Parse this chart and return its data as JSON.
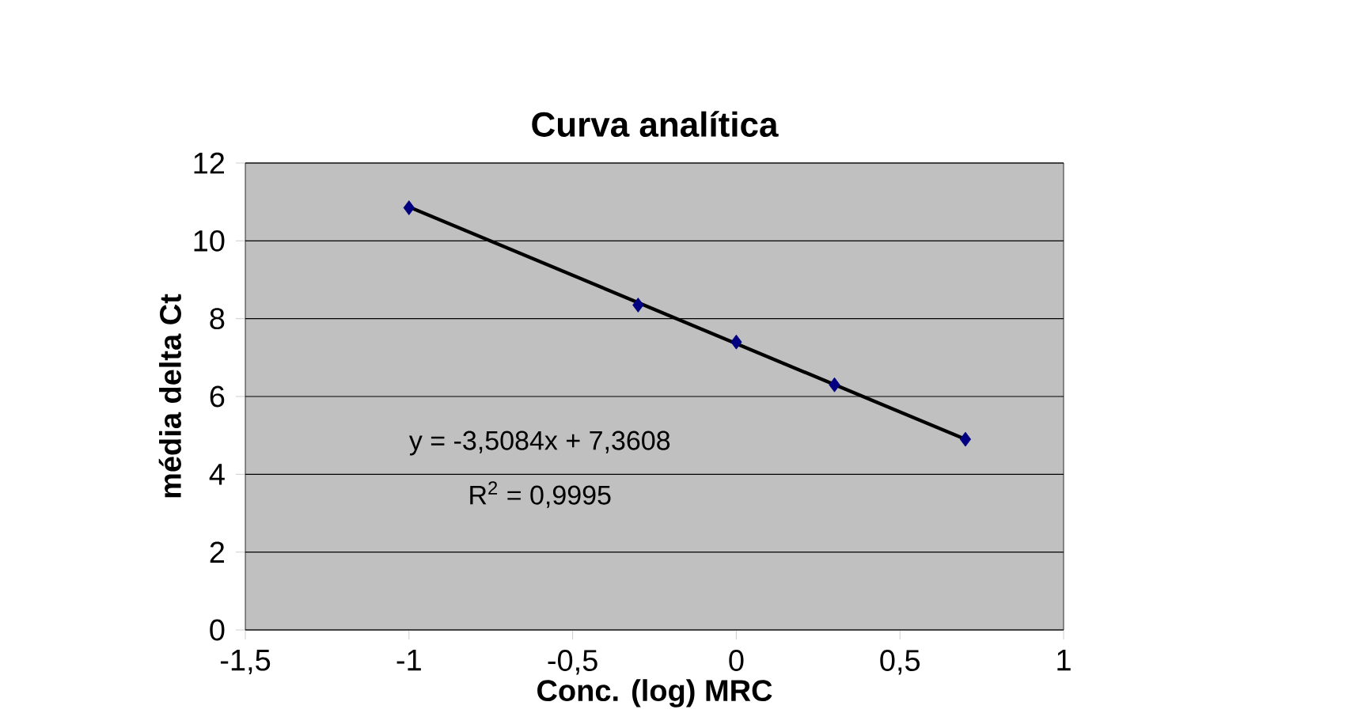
{
  "chart_data": {
    "type": "scatter",
    "title": "Curva analítica",
    "xlabel": "Conc. (log) MRC",
    "ylabel": "média delta Ct",
    "xlim": [
      -1.5,
      1
    ],
    "ylim": [
      0,
      12
    ],
    "xticks": [
      {
        "value": -1.5,
        "label": "-1,5"
      },
      -1,
      {
        "value": -0.5,
        "label": "-0,5"
      },
      0,
      {
        "value": 0.5,
        "label": "0,5"
      },
      1
    ],
    "yticks": [
      0,
      2,
      4,
      6,
      8,
      10,
      12
    ],
    "grid": "y",
    "marker": "diamond",
    "series": [
      {
        "color": "#000080",
        "x": [
          -1,
          -0.3,
          0,
          0.3,
          0.7
        ],
        "values": [
          10.85,
          8.35,
          7.4,
          6.3,
          4.9
        ]
      },
      {
        "type": "line",
        "color": "#000000",
        "marker": "none",
        "x": [
          -1,
          0.7
        ],
        "values": [
          10.87,
          4.9
        ]
      }
    ],
    "annotations": [
      "y = -3,5084x + 7,3608",
      "R$^{2}$ = 0,9995"
    ]
  }
}
